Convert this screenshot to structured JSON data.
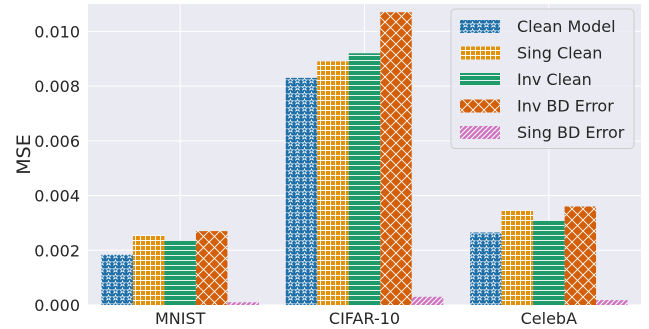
{
  "chart_data": {
    "type": "bar",
    "categories": [
      "MNIST",
      "CIFAR-10",
      "CelebA"
    ],
    "series": [
      {
        "name": "Clean Model",
        "values": [
          0.00185,
          0.0083,
          0.00265
        ],
        "color": "#1f6fa8",
        "pattern": "stars"
      },
      {
        "name": "Sing Clean",
        "values": [
          0.00255,
          0.0089,
          0.00345
        ],
        "color": "#e0920d",
        "pattern": "grid"
      },
      {
        "name": "Inv Clean",
        "values": [
          0.00235,
          0.0092,
          0.0031
        ],
        "color": "#1f9a6a",
        "pattern": "horizontal"
      },
      {
        "name": "Inv BD Error",
        "values": [
          0.0027,
          0.0107,
          0.0036
        ],
        "color": "#d35f0a",
        "pattern": "crosshatch"
      },
      {
        "name": "Sing BD Error",
        "values": [
          0.0001,
          0.0003,
          0.00018
        ],
        "color": "#cf74c1",
        "pattern": "diagonal"
      }
    ],
    "ylabel": "MSE",
    "xlabel": "",
    "ylim": [
      0,
      0.011
    ],
    "yticks": [
      "0.000",
      "0.002",
      "0.004",
      "0.006",
      "0.008",
      "0.010"
    ],
    "ytick_values": [
      0,
      0.002,
      0.004,
      0.006,
      0.008,
      0.01
    ],
    "grid": true,
    "legend_position": "top-right",
    "background": "#eaeaf2"
  }
}
